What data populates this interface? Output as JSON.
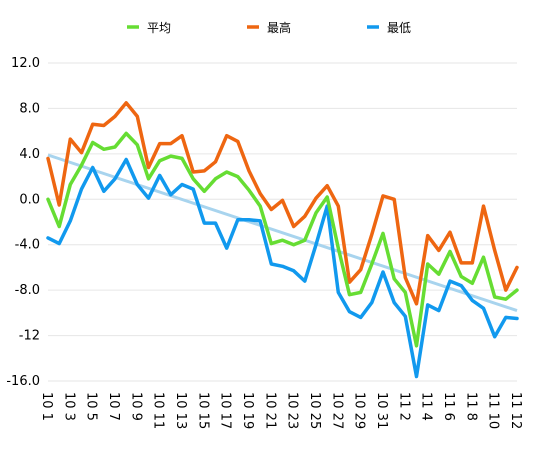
{
  "chart_data": {
    "type": "line",
    "title": "",
    "xlabel": "",
    "ylabel": "",
    "ylim": [
      -16,
      12
    ],
    "yticks": [
      "12.0",
      "8.0",
      "4.0",
      "0.0",
      "-4.0",
      "-8.0",
      "-12",
      "-16.0"
    ],
    "grid": "horizontal",
    "legend_position": "top",
    "categories": [
      "10 1",
      "10 2",
      "10 3",
      "10 4",
      "10 5",
      "10 6",
      "10 7",
      "10 8",
      "10 9",
      "10 10",
      "10 11",
      "10 12",
      "10 13",
      "10 14",
      "10 15",
      "10 16",
      "10 17",
      "10 18",
      "10 19",
      "10 20",
      "10 21",
      "10 22",
      "10 23",
      "10 24",
      "10 25",
      "10 26",
      "10 27",
      "10 28",
      "10 29",
      "10 30",
      "10 31",
      "11 1",
      "11 2",
      "11 3",
      "11 4",
      "11 5",
      "11 6",
      "11 7",
      "11 8",
      "11 9",
      "11 10",
      "11 11",
      "11 12"
    ],
    "x_tick_labels": [
      {
        "index": 0,
        "label": "10 1"
      },
      {
        "index": 2,
        "label": "10 3"
      },
      {
        "index": 4,
        "label": "10 5"
      },
      {
        "index": 6,
        "label": "10 7"
      },
      {
        "index": 8,
        "label": "10 9"
      },
      {
        "index": 10,
        "label": "10 11"
      },
      {
        "index": 12,
        "label": "10 13"
      },
      {
        "index": 14,
        "label": "10 15"
      },
      {
        "index": 16,
        "label": "10 17"
      },
      {
        "index": 18,
        "label": "10 19"
      },
      {
        "index": 20,
        "label": "10 21"
      },
      {
        "index": 22,
        "label": "10 23"
      },
      {
        "index": 24,
        "label": "10 25"
      },
      {
        "index": 26,
        "label": "10 27"
      },
      {
        "index": 28,
        "label": "10 29"
      },
      {
        "index": 30,
        "label": "10 31"
      },
      {
        "index": 32,
        "label": "11 2"
      },
      {
        "index": 34,
        "label": "11 4"
      },
      {
        "index": 36,
        "label": "11 6"
      },
      {
        "index": 38,
        "label": "11 8"
      },
      {
        "index": 40,
        "label": "11 10"
      },
      {
        "index": 42,
        "label": "11 12"
      }
    ],
    "series": [
      {
        "name": "平均",
        "color": "#66dd33",
        "values": [
          0.0,
          -2.4,
          1.3,
          3.0,
          5.0,
          4.4,
          4.6,
          5.8,
          4.8,
          1.8,
          3.4,
          3.8,
          3.6,
          1.8,
          0.7,
          1.8,
          2.4,
          2.0,
          0.8,
          -0.6,
          -3.9,
          -3.6,
          -4.0,
          -3.6,
          -1.2,
          0.2,
          -4.3,
          -8.4,
          -8.2,
          -5.7,
          -3.0,
          -7.0,
          -8.2,
          -12.9,
          -5.7,
          -6.6,
          -4.6,
          -6.8,
          -7.4,
          -5.1,
          -8.6,
          -8.8,
          -8.0
        ]
      },
      {
        "name": "最高",
        "color": "#ee6611",
        "values": [
          3.6,
          -0.5,
          5.3,
          4.1,
          6.6,
          6.5,
          7.3,
          8.5,
          7.3,
          2.8,
          4.9,
          4.9,
          5.6,
          2.4,
          2.5,
          3.3,
          5.6,
          5.1,
          2.5,
          0.5,
          -0.9,
          -0.1,
          -2.4,
          -1.5,
          0.1,
          1.2,
          -0.6,
          -7.3,
          -6.2,
          -3.1,
          0.3,
          0.0,
          -6.9,
          -9.2,
          -3.2,
          -4.5,
          -2.9,
          -5.6,
          -5.6,
          -0.6,
          -4.5,
          -8.0,
          -6.0
        ]
      },
      {
        "name": "最低",
        "color": "#1199ee",
        "values": [
          -3.4,
          -3.9,
          -1.9,
          0.9,
          2.8,
          0.7,
          1.8,
          3.5,
          1.3,
          0.1,
          2.1,
          0.4,
          1.3,
          0.9,
          -2.1,
          -2.1,
          -4.3,
          -1.8,
          -1.8,
          -1.9,
          -5.7,
          -5.9,
          -6.3,
          -7.2,
          -4.0,
          -0.6,
          -8.2,
          -9.9,
          -10.4,
          -9.1,
          -6.4,
          -9.1,
          -10.3,
          -15.6,
          -9.3,
          -9.8,
          -7.2,
          -7.6,
          -8.9,
          -9.6,
          -12.1,
          -10.4,
          -10.5
        ]
      }
    ],
    "trendline": {
      "color": "#a8d4ee",
      "start": 3.9,
      "end": -9.8
    }
  }
}
